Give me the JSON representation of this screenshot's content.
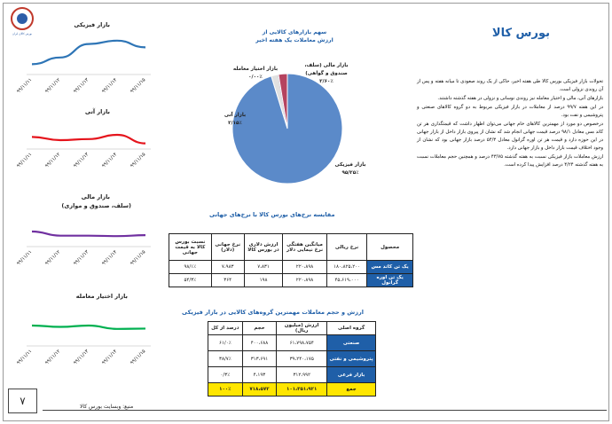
{
  "header": {
    "title": "بورس کالا",
    "logo_text": "بورس کالای ایران"
  },
  "body_paragraphs": [
    "تحولات بازار فیزیکی بورس کالا طی هفته اخیر، حاکی از یک روند صعودی تا میانه هفته و پس از آن روندی نزولی است.",
    "بازارهای آتی، مالی و اختیار معامله نیز روندی نوسانی و نزولی در هفته گذشته داشتند.",
    "در این هفته ۹۹/۷ درصد از معاملات در بازار فیزیکی مربوط به دو گروه کالاهای صنعتی و پتروشیمی و نفت بود.",
    "درخصوص دو مورد از مهمترین کالاهای خام جهانی می‌توان اظهار داشت که قیمتگذاری هر تن کاتد مس معادل ۹۸/۱ درصد قیمت جهانی انجام شد که نشان از پیروی بازار داخل از بازار جهانی در این حوزه دارد و قیمت هر تن اوره گرانول معادل ۵۴/۳ درصد بازار جهانی بود که نشان از وجود اختلاف قیمت بازار داخل و بازار جهانی دارد.",
    "ارزش معاملات بازار فیزیکی نسبت به هفته گذشته ۴۳/۷۵ درصد و همچنین حجم معاملات نسبت به هفته گذشته ۴/۲۴ درصد افزایش پیدا کرده است."
  ],
  "mini_charts": [
    {
      "title": "بازار فیزیکی",
      "color": "#2e75b6",
      "x": [
        "۹۹/۱۱/۱۱",
        "۹۹/۱۱/۱۲",
        "۹۹/۱۱/۱۳",
        "۹۹/۱۱/۱۴",
        "۹۹/۱۱/۱۵"
      ],
      "y": [
        2,
        4,
        8,
        9,
        7
      ]
    },
    {
      "title": "بازار آتی",
      "color": "#e5141c",
      "x": [
        "۹۹/۱۱/۱۱",
        "۹۹/۱۱/۱۲",
        "۹۹/۱۱/۱۳",
        "۹۹/۱۱/۱۴",
        "۹۹/۱۱/۱۵"
      ],
      "y": [
        4,
        2.5,
        3,
        5,
        1
      ]
    },
    {
      "title": "بازار مالی",
      "subtitle": "(سلف، صندوق و موازی)",
      "color": "#7030a0",
      "x": [
        "۹۹/۱۱/۱۱",
        "۹۹/۱۱/۱۲",
        "۹۹/۱۱/۱۳",
        "۹۹/۱۱/۱۴",
        "۹۹/۱۱/۱۵"
      ],
      "y": [
        5,
        3.2,
        3.2,
        3,
        3.4
      ]
    },
    {
      "title": "بازار اختیار معامله",
      "color": "#00b050",
      "x": [
        "۹۹/۱۱/۱۱",
        "۹۹/۱۱/۱۲",
        "۹۹/۱۱/۱۳",
        "۹۹/۱۱/۱۴",
        "۹۹/۱۱/۱۵"
      ],
      "y": [
        5,
        4.6,
        5,
        4,
        4.1
      ]
    }
  ],
  "pie": {
    "title_line1": "سهم بازارهای کالایی از",
    "title_line2": "ارزش معاملات یک هفته اخیر",
    "slices": [
      {
        "name": "بازار فیزیکی",
        "value_label": "۹۵/۲۵٪",
        "value": 95.25,
        "color": "#5b8ac9"
      },
      {
        "name": "بازار آتی",
        "value_label": "۲/۱۵٪",
        "value": 2.15,
        "color": "#e0e0e0"
      },
      {
        "name": "بازار اختیار معامله",
        "value_label": "۰/۰۰٪",
        "value": 0.0,
        "color": "#7030a0"
      },
      {
        "name": "بازار مالی (سلف، صندوق و گواهی)",
        "value_label": "۲/۶۰٪",
        "value": 2.6,
        "color": "#b5435f"
      }
    ]
  },
  "price_table": {
    "title": "مقایسه نرخ‌های بورس کالا با نرخ‌های جهانی",
    "headers": [
      "محصول",
      "نرخ ریالی",
      "میانگین هفتگی نرخ نیمایی دلار",
      "ارزش دلاری در بورس کالا",
      "نرخ جهانی (دلار)",
      "نسبت بورس کالا به قیمت جهانی"
    ],
    "rows": [
      [
        "یک تن کاتد مس",
        "۱۸۰،۸۲۵،۲۰۰",
        "۲۲۰،۸۹۸",
        "۷،۸۳۱",
        "۷،۹۸۳",
        "۹۸/۱٪"
      ],
      [
        "یک تن اوره گرانول",
        "۴۵،۶۱۹،۰۰۰",
        "۲۲۰،۸۹۸",
        "۱۹۸",
        "۳۶۴",
        "۵۴/۳٪"
      ]
    ]
  },
  "value_table": {
    "title": "ارزش و حجم معاملات مهمترین گروه‌های کالایی در بازار فیزیکی",
    "headers": [
      "گروه اصلی",
      "ارزش (میلیون ریال)",
      "حجم",
      "درصد از کل"
    ],
    "rows": [
      [
        "صنعتی",
        "۶۱،۷۹۸،۷۵۴",
        "۴۰۰،۶۸۸",
        "۶۱/۰٪"
      ],
      [
        "پتروشیمی و نفتی",
        "۳۹،۲۴۰،۱۷۵",
        "۳۱۳،۶۹۱",
        "۳۸/۷٪"
      ],
      [
        "بازار فرعی",
        "۳۱۲،۹۹۲",
        "۴،۱۹۳",
        "۰/۳٪"
      ]
    ],
    "total": [
      "جمع",
      "۱۰۱،۳۵۱،۹۲۱",
      "۷۱۸،۵۷۲",
      "۱۰۰٪"
    ]
  },
  "footer": {
    "source": "منبع: وبسایت بورس کالا",
    "page_number": "۷"
  }
}
